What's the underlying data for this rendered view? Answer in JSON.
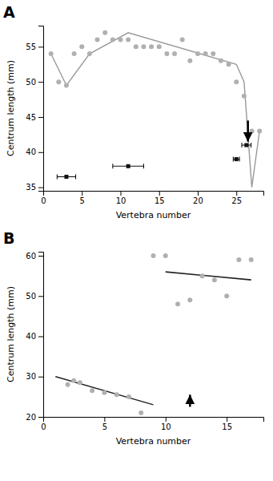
{
  "chart_data": [
    {
      "type": "scatter",
      "title": "A",
      "xlabel": "Vertebra number",
      "ylabel": "Centrum length (mm)",
      "xlim": [
        0,
        28.5
      ],
      "ylim": [
        34.5,
        58
      ],
      "xticks": [
        0,
        5,
        10,
        15,
        20,
        25
      ],
      "yticks": [
        35,
        40,
        45,
        50,
        55
      ],
      "series": [
        {
          "type": "scatter",
          "color": "#b0b0b0",
          "x": [
            1,
            2,
            3,
            4,
            5,
            6,
            7,
            8,
            9,
            10,
            11,
            12,
            13,
            14,
            15,
            16,
            17,
            18,
            19,
            20,
            21,
            22,
            23,
            24,
            25,
            26,
            27,
            28
          ],
          "values": [
            54,
            50,
            49.5,
            54,
            55,
            54,
            56,
            57,
            56,
            56,
            56,
            55,
            55,
            55,
            55,
            54,
            54,
            56,
            53,
            54,
            54,
            54,
            53,
            52.5,
            50,
            48,
            43,
            43
          ]
        },
        {
          "type": "line",
          "color": "#999999",
          "x": [
            1,
            3,
            6,
            11,
            25,
            26,
            27,
            28
          ],
          "values": [
            54,
            49.5,
            54,
            57,
            52.5,
            50,
            35,
            43
          ]
        },
        {
          "type": "errorbar",
          "color": "#111111",
          "marker": "square",
          "x": [
            3,
            11,
            25,
            26.3
          ],
          "values": [
            36.5,
            38,
            39,
            41
          ],
          "xerr": [
            1.2,
            2.0,
            0.4,
            0.6
          ]
        }
      ],
      "annotations": [
        {
          "type": "arrow",
          "color": "#000000",
          "x": 26.5,
          "y_start": 44.5,
          "y_end": 41.5
        }
      ]
    },
    {
      "type": "scatter",
      "title": "B",
      "xlabel": "Vertebra number",
      "ylabel": "Centrum length (mm)",
      "xlim": [
        0,
        18
      ],
      "ylim": [
        20,
        61
      ],
      "xticks": [
        0,
        5,
        10,
        15
      ],
      "yticks": [
        20,
        30,
        40,
        50,
        60
      ],
      "series": [
        {
          "type": "scatter",
          "color": "#b0b0b0",
          "x": [
            2,
            2.5,
            3,
            4,
            5,
            6,
            7,
            8,
            9,
            10,
            11,
            12,
            13,
            14,
            15,
            16,
            17
          ],
          "values": [
            28,
            29,
            28.5,
            26.5,
            26,
            25.5,
            25,
            21,
            60,
            60,
            48,
            49,
            55,
            54,
            50,
            59,
            59
          ]
        },
        {
          "type": "line",
          "color": "#222222",
          "x": [
            1,
            9
          ],
          "values": [
            30,
            23
          ]
        },
        {
          "type": "line",
          "color": "#222222",
          "x": [
            10,
            17
          ],
          "values": [
            56,
            54
          ]
        }
      ],
      "annotations": [
        {
          "type": "arrow",
          "color": "#000000",
          "x": 12,
          "y_start": 22.5,
          "y_end": 25.5
        }
      ]
    }
  ]
}
